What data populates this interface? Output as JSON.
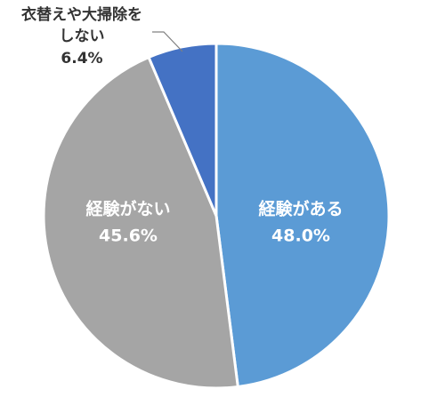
{
  "chart_data": {
    "type": "pie",
    "title": "",
    "start": "top",
    "direction": "clockwise",
    "legend": "none",
    "slices": [
      {
        "label": "経験がある",
        "value": 48.0,
        "display": "48.0%",
        "color": "#5b9bd5",
        "label_position": "inside"
      },
      {
        "label": "経験がない",
        "value": 45.6,
        "display": "45.6%",
        "color": "#a5a5a5",
        "label_position": "inside"
      },
      {
        "label_lines": [
          "衣替えや大掃除を",
          "しない"
        ],
        "value": 6.4,
        "display": "6.4%",
        "color": "#4472c4",
        "label_position": "outside"
      }
    ]
  }
}
